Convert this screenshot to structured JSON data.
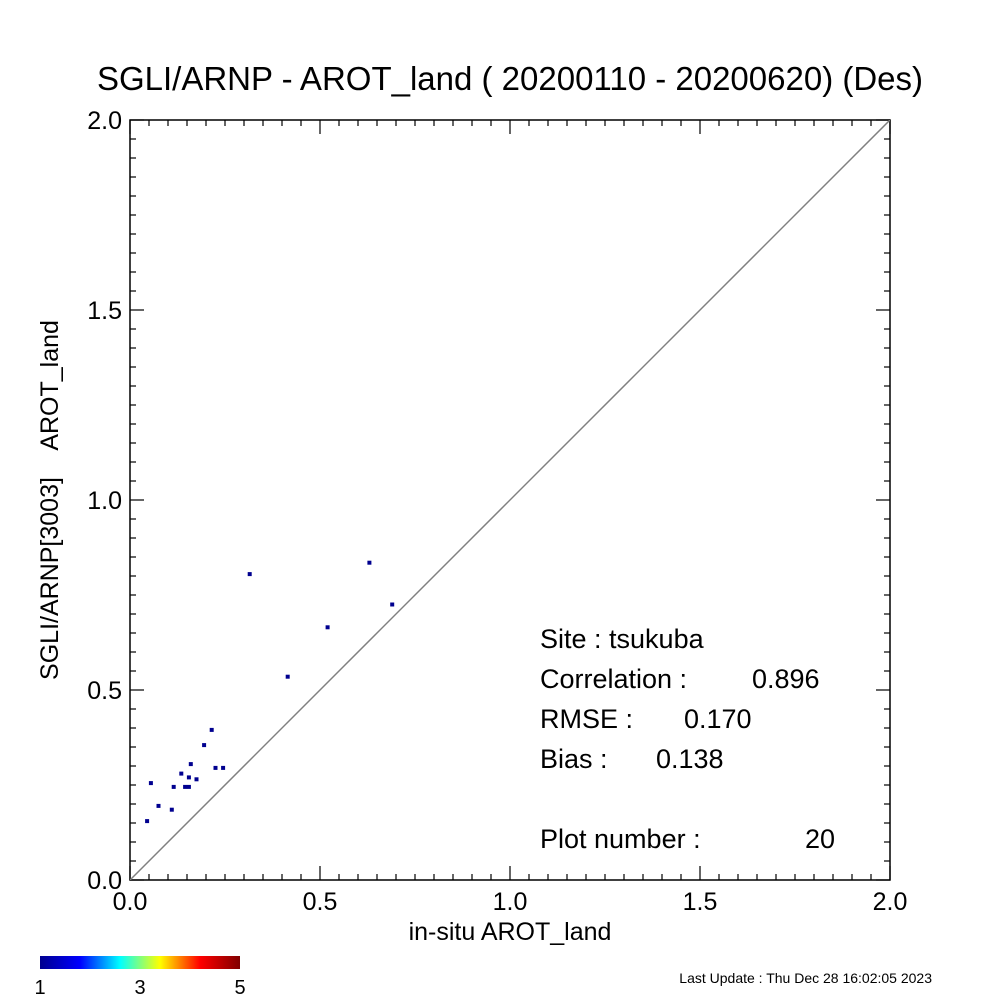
{
  "chart_data": {
    "type": "scatter",
    "title": "SGLI/ARNP - AROT_land ( 20200110 - 20200620) (Des)",
    "xlabel": "in-situ AROT_land",
    "ylabel": "SGLI/ARNP[3003]    AROT_land",
    "xlim": [
      0.0,
      2.0
    ],
    "ylim": [
      0.0,
      2.0
    ],
    "x_ticks": [
      "0.0",
      "0.5",
      "1.0",
      "1.5",
      "2.0"
    ],
    "y_ticks": [
      "0.0",
      "0.5",
      "1.0",
      "1.5",
      "2.0"
    ],
    "reference_line": "1:1",
    "grid": false,
    "points": [
      {
        "x": 0.045,
        "y": 0.155
      },
      {
        "x": 0.055,
        "y": 0.255
      },
      {
        "x": 0.075,
        "y": 0.195
      },
      {
        "x": 0.11,
        "y": 0.185
      },
      {
        "x": 0.115,
        "y": 0.245
      },
      {
        "x": 0.135,
        "y": 0.28
      },
      {
        "x": 0.145,
        "y": 0.245
      },
      {
        "x": 0.155,
        "y": 0.245
      },
      {
        "x": 0.155,
        "y": 0.27
      },
      {
        "x": 0.16,
        "y": 0.305
      },
      {
        "x": 0.175,
        "y": 0.265
      },
      {
        "x": 0.195,
        "y": 0.355
      },
      {
        "x": 0.215,
        "y": 0.395
      },
      {
        "x": 0.225,
        "y": 0.295
      },
      {
        "x": 0.245,
        "y": 0.295
      },
      {
        "x": 0.315,
        "y": 0.805
      },
      {
        "x": 0.415,
        "y": 0.535
      },
      {
        "x": 0.52,
        "y": 0.665
      },
      {
        "x": 0.63,
        "y": 0.835
      },
      {
        "x": 0.69,
        "y": 0.725
      }
    ],
    "point_color": "#00008f",
    "stats": {
      "site_label": "Site : tsukuba",
      "correlation_label": "Correlation :",
      "correlation_value": "0.896",
      "rmse_label": "RMSE :",
      "rmse_value": "0.170",
      "bias_label": "Bias :",
      "bias_value": "0.138",
      "plot_number_label": "Plot number :",
      "plot_number_value": "20"
    },
    "colorbar": {
      "min_label": "1",
      "mid_label": "3",
      "max_label": "5",
      "colors": [
        "#00008f",
        "#0000ff",
        "#00ffff",
        "#ffff00",
        "#ff0000",
        "#800000"
      ]
    }
  },
  "footer": {
    "last_update": "Last Update : Thu Dec 28 16:02:05 2023"
  }
}
